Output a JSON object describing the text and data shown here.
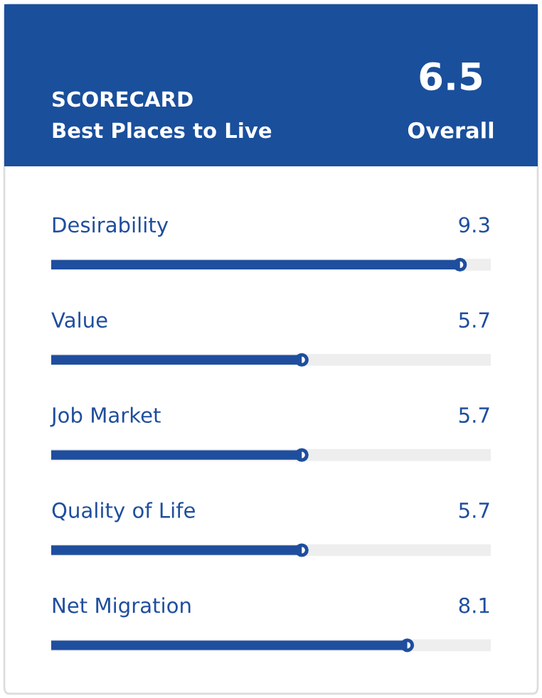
{
  "chart_data": {
    "type": "bar",
    "orientation": "horizontal",
    "title": "SCORECARD",
    "subtitle": "Best Places to Live",
    "annotations": [
      "6.5",
      "Overall"
    ],
    "categories": [
      "Desirability",
      "Value",
      "Job Market",
      "Quality of Life",
      "Net Migration"
    ],
    "values": [
      9.3,
      5.7,
      5.7,
      5.7,
      8.1
    ],
    "color": "#1f4e9e",
    "xlim": [
      0,
      10
    ],
    "data_labels": true
  }
}
